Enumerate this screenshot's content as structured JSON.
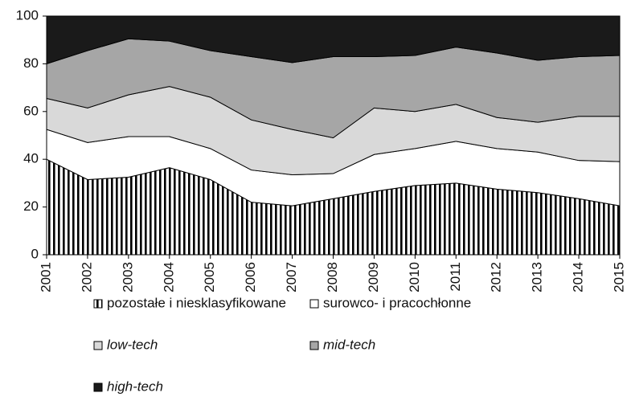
{
  "chart_data": {
    "type": "stacked_area",
    "categories": [
      "2001",
      "2002",
      "2003",
      "2004",
      "2005",
      "2006",
      "2007",
      "2008",
      "2009",
      "2010",
      "2011",
      "2012",
      "2013",
      "2014",
      "2015"
    ],
    "series": [
      {
        "name": "pozostałe i niesklasyfikowane",
        "color": "#000000",
        "hatch": true,
        "values": [
          40,
          31.5,
          32.5,
          36.5,
          31.5,
          22,
          20.5,
          23.5,
          26.5,
          29,
          30,
          27.5,
          26,
          23.5,
          20.5
        ]
      },
      {
        "name": "surowco- i pracochłonne",
        "color": "#ffffff",
        "values": [
          12.5,
          15.5,
          17,
          13,
          13,
          13.5,
          13,
          10.5,
          15.5,
          15.5,
          17.5,
          17,
          17,
          16,
          18.5
        ]
      },
      {
        "name": "low-tech",
        "color": "#d9d9d9",
        "italic": true,
        "values": [
          13,
          14.5,
          17.5,
          21,
          21.5,
          21,
          19,
          15,
          19.5,
          15.5,
          15.5,
          13,
          12.5,
          18.5,
          19
        ]
      },
      {
        "name": "mid-tech",
        "color": "#a6a6a6",
        "italic": true,
        "values": [
          14.5,
          24,
          23.5,
          19,
          19.5,
          26.5,
          28,
          34,
          21.5,
          23.5,
          24,
          27,
          26,
          25,
          25.5
        ]
      },
      {
        "name": "high-tech",
        "color": "#1a1a1a",
        "italic": true,
        "values": [
          20,
          14.5,
          9.5,
          10.5,
          14.5,
          17,
          19.5,
          17,
          17,
          16.5,
          13,
          15.5,
          18.5,
          17,
          16.5
        ]
      }
    ],
    "ylim": [
      0,
      100
    ],
    "yticks": [
      0,
      20,
      40,
      60,
      80,
      100
    ],
    "grid": false
  }
}
